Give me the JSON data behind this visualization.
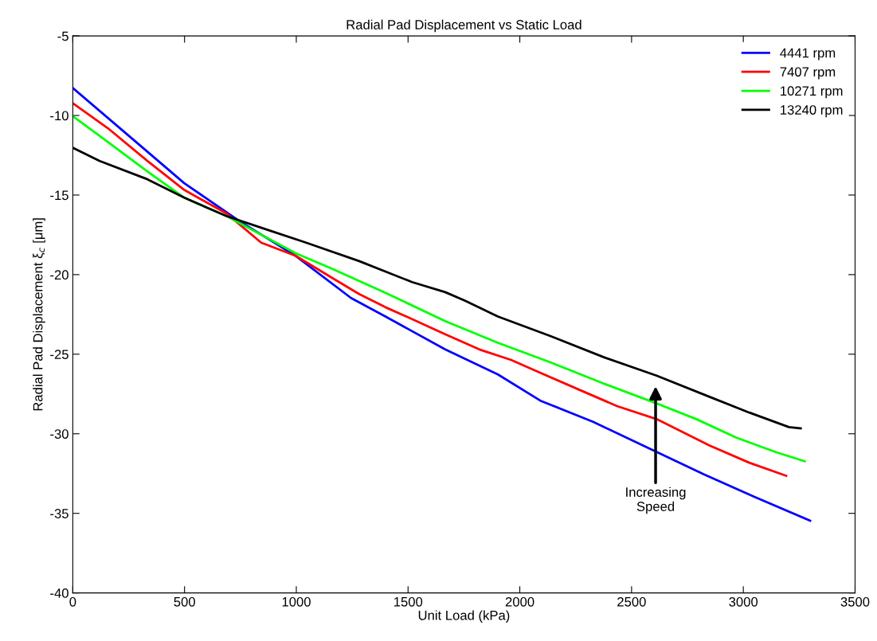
{
  "chart_data": {
    "type": "line",
    "title": "Radial Pad Displacement vs Static Load",
    "xlabel": "Unit Load (kPa)",
    "ylabel": "Radial Pad Displacement ξ$_{c}$ [μm]",
    "xlim": [
      0,
      3500
    ],
    "xticks": [
      0,
      500,
      1000,
      1500,
      2000,
      2500,
      3000,
      3500
    ],
    "ylim": [
      -40,
      -5
    ],
    "yticks": [
      -40,
      -35,
      -30,
      -25,
      -20,
      -15,
      -10,
      -5
    ],
    "legend": "top right",
    "grid": false,
    "line_style": "solid",
    "marker": "none",
    "annotations": [
      "Increasing\nSpeed"
    ],
    "series": [
      {
        "name": "4441 rpm",
        "color": "#0000ff",
        "x": [
          2.4,
          251,
          499,
          748,
          997,
          1245,
          1399,
          1666,
          1902,
          2092,
          2328,
          2589,
          2826,
          3050,
          3299
        ],
        "values": [
          -8.3,
          -11.28,
          -14.26,
          -16.66,
          -18.82,
          -21.47,
          -22.63,
          -24.7,
          -26.27,
          -27.92,
          -29.25,
          -30.99,
          -32.56,
          -33.97,
          -35.46
        ]
      },
      {
        "name": "7407 rpm",
        "color": "#ff0000",
        "x": [
          2.4,
          156,
          334,
          499,
          689,
          843,
          997,
          1162,
          1281,
          1399,
          1518,
          1666,
          1819,
          1961,
          2080,
          2257,
          2435,
          2612,
          2849,
          3027,
          3192
        ],
        "values": [
          -9.25,
          -10.79,
          -12.86,
          -14.68,
          -16.17,
          -17.99,
          -18.82,
          -20.22,
          -21.22,
          -22.05,
          -22.79,
          -23.75,
          -24.7,
          -25.36,
          -26.1,
          -27.18,
          -28.26,
          -29.08,
          -30.74,
          -31.82,
          -32.64
        ]
      },
      {
        "name": "10271 rpm",
        "color": "#00ff00",
        "x": [
          0,
          144,
          334,
          499,
          689,
          997,
          1162,
          1399,
          1666,
          1902,
          2139,
          2376,
          2612,
          2790,
          2968,
          3145,
          3275
        ],
        "values": [
          -10.04,
          -11.53,
          -13.52,
          -15.17,
          -16.33,
          -18.65,
          -19.64,
          -21.14,
          -22.92,
          -24.28,
          -25.52,
          -26.85,
          -28.09,
          -29.08,
          -30.24,
          -31.15,
          -31.73
        ]
      },
      {
        "name": "13240 rpm",
        "color": "#000000",
        "x": [
          0,
          121,
          334,
          499,
          689,
          866,
          1044,
          1281,
          1518,
          1666,
          1754,
          1902,
          2139,
          2376,
          2612,
          2849,
          3027,
          3204,
          3257
        ],
        "values": [
          -12.03,
          -12.86,
          -14.01,
          -15.17,
          -16.33,
          -17.16,
          -17.99,
          -19.15,
          -20.47,
          -21.1,
          -21.63,
          -22.63,
          -23.87,
          -25.19,
          -26.35,
          -27.68,
          -28.67,
          -29.58,
          -29.66
        ]
      }
    ]
  }
}
